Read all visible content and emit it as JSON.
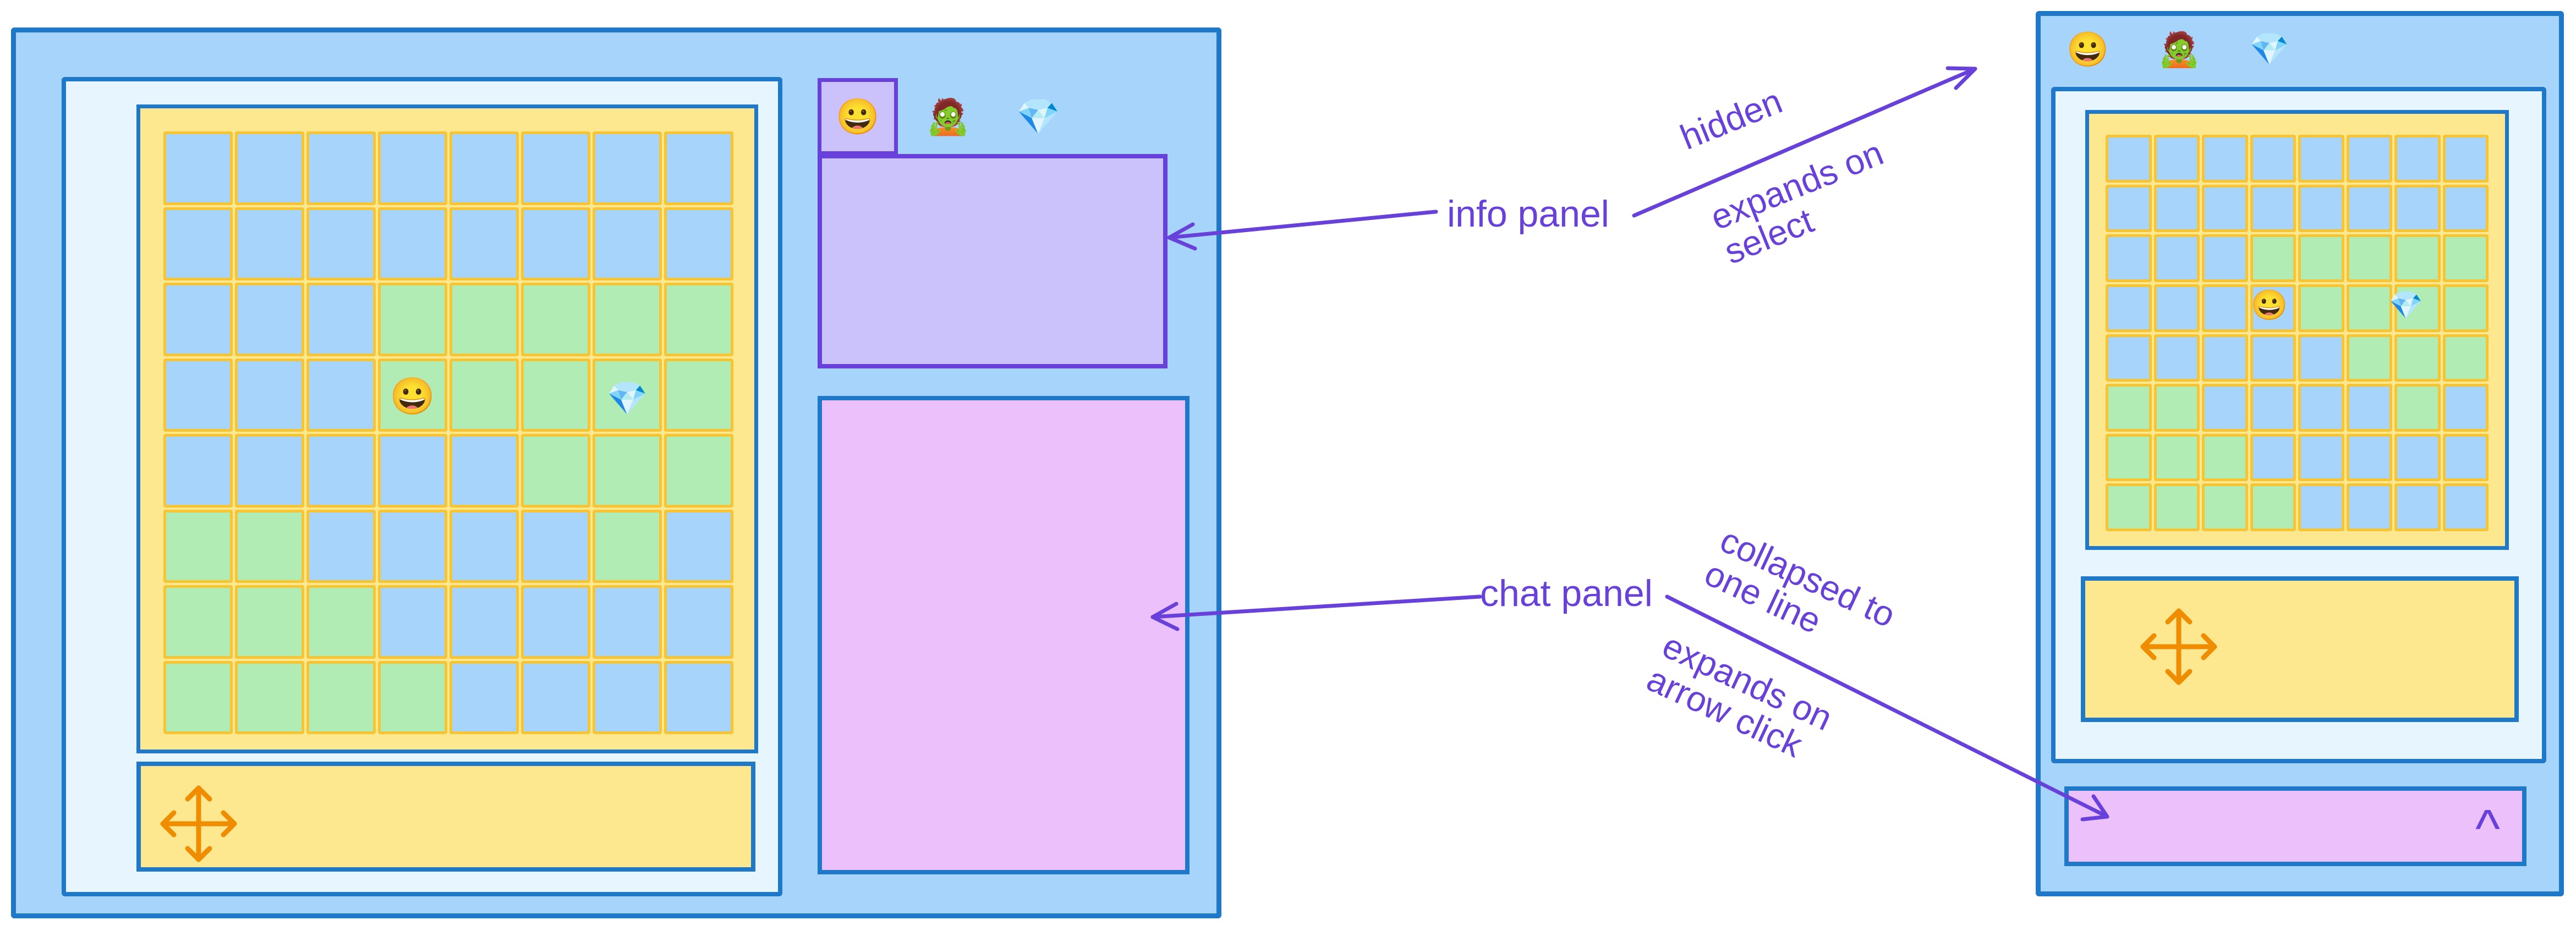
{
  "annotations": {
    "info_panel": "info panel",
    "chat_panel": "chat panel",
    "hidden": "hidden",
    "expands_on_select": "expands on\nselect",
    "collapsed_to_one_line": "collapsed to\none line",
    "expands_on_arrow_click": "expands on\narrow click"
  },
  "icons": {
    "player": "😀",
    "zombie": "🧟",
    "gem": "💎",
    "move_control": "move-arrows-icon",
    "expand_chat": "^"
  },
  "colors": {
    "window_outer": "#a6d4fb",
    "window_inner": "#e7f5fe",
    "window_border": "#1f78c8",
    "board_background": "#fde78f",
    "cell_border": "#f7c433",
    "cell_blue": "#a6d4fb",
    "cell_green": "#b1ecb5",
    "info_panel": "#cbc2fc",
    "info_panel_border": "#6741d9",
    "chat_panel": "#ecc1fb",
    "annotation": "#6741d9",
    "arrow_control": "#f08c00"
  },
  "desktop_board": {
    "rows": [
      "bbbbbbbb",
      "bbbbbbbb",
      "bbbggggg",
      "bbbggggg",
      "bbbbbggg",
      "ggbbbbgb",
      "gggbbbbb",
      "ggggbbbb"
    ]
  },
  "mobile_board": {
    "rows": [
      "bbbbbbbb",
      "bbbbbbbb",
      "bbbggggg",
      "bbbbgggg",
      "bbbbbggg",
      "ggbbbbgb",
      "gggbbbbb",
      "ggggbbbb"
    ]
  }
}
